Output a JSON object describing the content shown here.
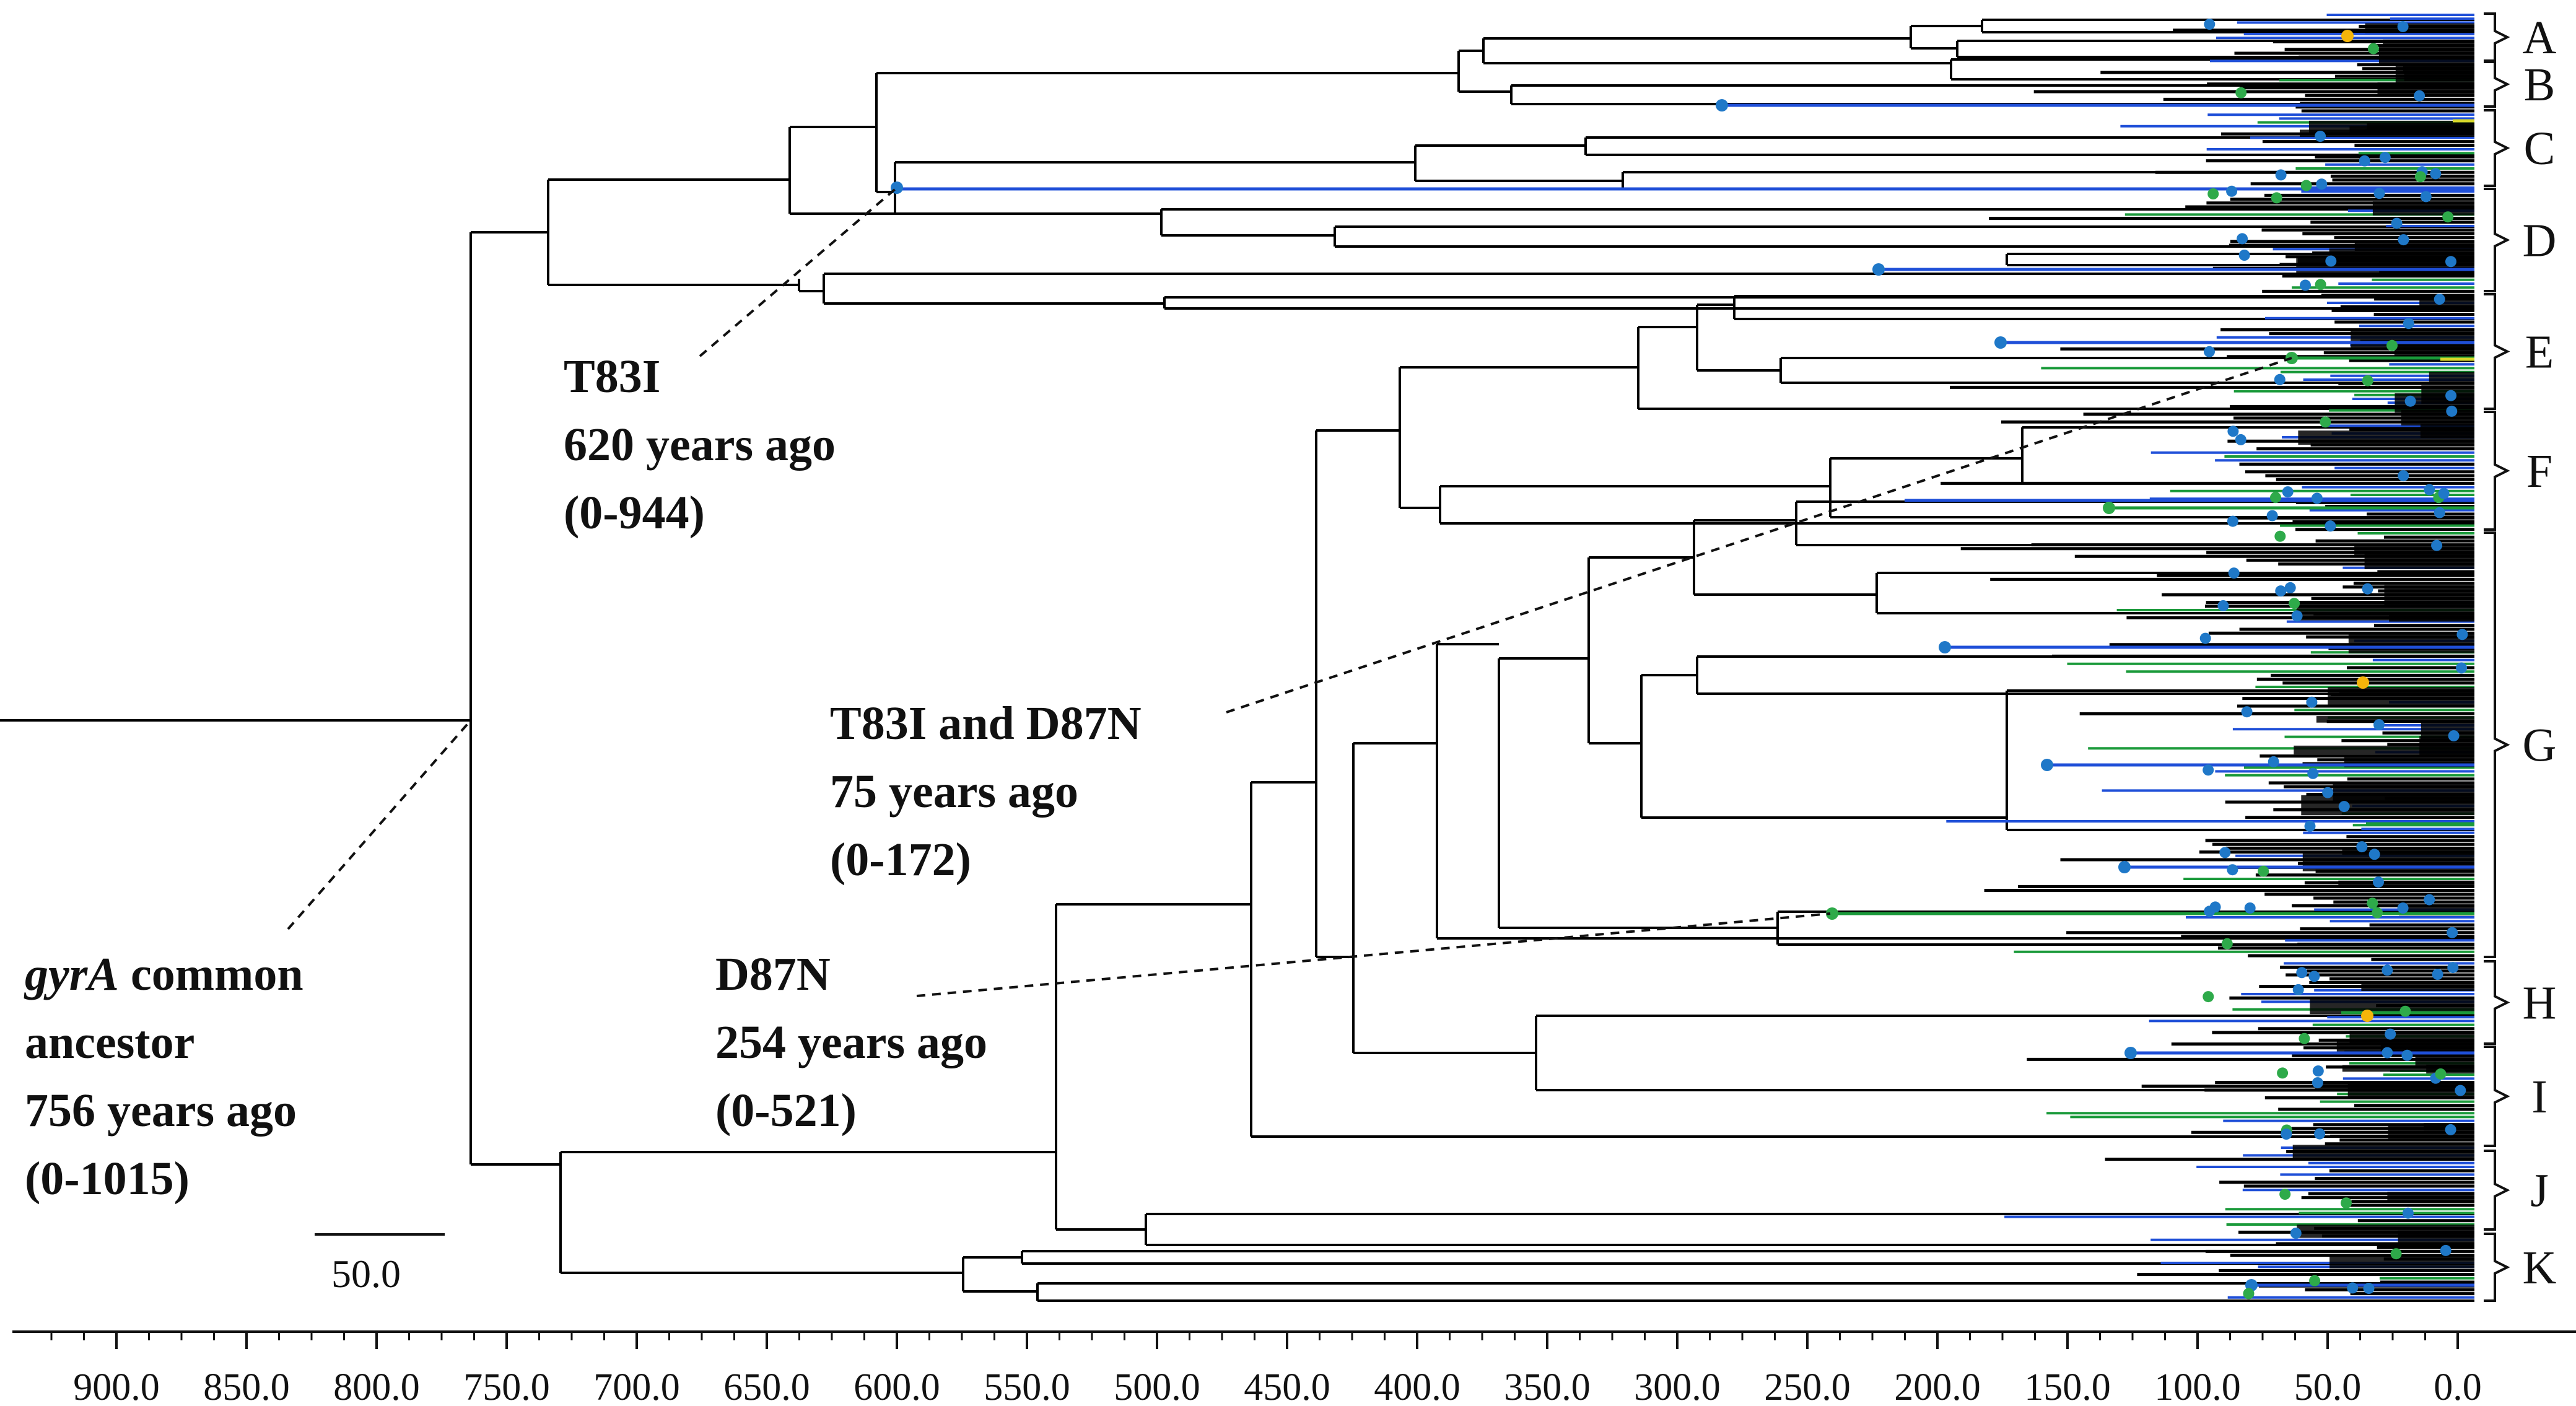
{
  "annotations": {
    "t83i": {
      "line1": "T83I",
      "line2": "620 years ago",
      "line3": "(0-944)"
    },
    "t83i_d87n": {
      "line1": "T83I and D87N",
      "line2": "75 years ago",
      "line3": "(0-172)"
    },
    "d87n": {
      "line1": "D87N",
      "line2": "254 years ago",
      "line3": "(0-521)"
    },
    "common_ancestor": {
      "line1_italic": "gyrA",
      "line1_rest": " common",
      "line2": "ancestor",
      "line3": "756 years ago",
      "line4": "(0-1015)"
    }
  },
  "clades": [
    "A",
    "B",
    "C",
    "D",
    "E",
    "F",
    "G",
    "H",
    "I",
    "J",
    "K"
  ],
  "scale_bar": {
    "label": "50.0",
    "value": 50
  },
  "axis": {
    "ticks": [
      "900.0",
      "850.0",
      "800.0",
      "750.0",
      "700.0",
      "650.0",
      "600.0",
      "550.0",
      "500.0",
      "450.0",
      "400.0",
      "350.0",
      "300.0",
      "250.0",
      "200.0",
      "150.0",
      "100.0",
      "50.0",
      "0.0"
    ]
  },
  "colors": {
    "branch": "#000000",
    "blue_branch": "#1f4fd8",
    "green_branch": "#1a9a3a",
    "yellow_branch": "#d8d82a",
    "blue_node": "#1f78c8",
    "green_node": "#2eaa4a",
    "orange_node": "#f5b50a"
  }
}
